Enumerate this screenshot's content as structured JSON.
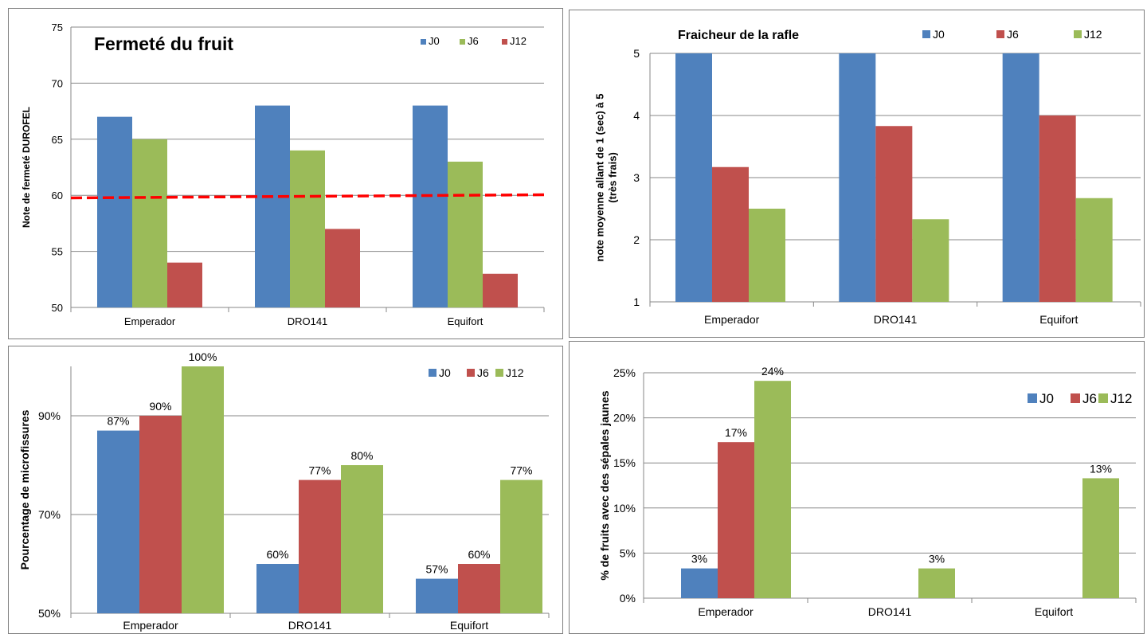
{
  "chart_data": [
    {
      "type": "bar",
      "title": "Fermeté du fruit",
      "ylabel": "Note de fermeté DUROFEL",
      "xlabel": "",
      "categories": [
        "Emperador",
        "DRO141",
        "Equifort"
      ],
      "series": [
        {
          "name": "J0",
          "color": "#4f81bd",
          "values": [
            67,
            68,
            68
          ]
        },
        {
          "name": "J6",
          "color": "#9bbb59",
          "values": [
            65,
            64,
            63
          ]
        },
        {
          "name": "J12",
          "color": "#c0504d",
          "values": [
            54,
            57,
            53
          ]
        }
      ],
      "ylim": [
        50,
        75
      ],
      "yticks": [
        50,
        55,
        60,
        65,
        70,
        75
      ],
      "ytick_labels": [
        "50",
        "55",
        "60",
        "65",
        "70",
        "75"
      ],
      "reference_line": {
        "value": 60,
        "color": "#ff0000",
        "style": "dashed"
      },
      "legend": "top-right",
      "grid": true,
      "data_labels": null
    },
    {
      "type": "bar",
      "title": "Fraicheur de la rafle",
      "ylabel": "note moyenne allant de 1 (sec) à 5 (très frais)",
      "xlabel": "",
      "categories": [
        "Emperador",
        "DRO141",
        "Equifort"
      ],
      "series": [
        {
          "name": "J0",
          "color": "#4f81bd",
          "values": [
            5,
            5,
            5
          ]
        },
        {
          "name": "J6",
          "color": "#c0504d",
          "values": [
            3.17,
            3.83,
            4.0
          ]
        },
        {
          "name": "J12",
          "color": "#9bbb59",
          "values": [
            2.5,
            2.33,
            2.67
          ]
        }
      ],
      "ylim": [
        1,
        5
      ],
      "yticks": [
        1,
        2,
        3,
        4,
        5
      ],
      "ytick_labels": [
        "1",
        "2",
        "3",
        "4",
        "5"
      ],
      "legend": "top",
      "grid": true,
      "data_labels": null
    },
    {
      "type": "bar",
      "title": "",
      "ylabel": "Pourcentage de microfissures",
      "xlabel": "",
      "categories": [
        "Emperador",
        "DRO141",
        "Equifort"
      ],
      "series": [
        {
          "name": "J0",
          "color": "#4f81bd",
          "values": [
            87,
            60,
            57
          ]
        },
        {
          "name": "J6",
          "color": "#c0504d",
          "values": [
            90,
            77,
            60
          ]
        },
        {
          "name": "J12",
          "color": "#9bbb59",
          "values": [
            100,
            80,
            77
          ]
        }
      ],
      "ylim": [
        50,
        100
      ],
      "yticks": [
        50,
        70,
        90
      ],
      "ytick_labels": [
        "50%",
        "70%",
        "90%"
      ],
      "legend": "top-right",
      "grid": true,
      "data_labels": [
        [
          "87%",
          "60%",
          "57%"
        ],
        [
          "90%",
          "77%",
          "60%"
        ],
        [
          "100%",
          "80%",
          "77%"
        ]
      ]
    },
    {
      "type": "bar",
      "title": "",
      "ylabel": "% de fruits avec des sépales jaunes",
      "xlabel": "",
      "categories": [
        "Emperador",
        "DRO141",
        "Equifort"
      ],
      "series": [
        {
          "name": "J0",
          "color": "#4f81bd",
          "values": [
            3.3,
            0,
            0
          ]
        },
        {
          "name": "J6",
          "color": "#c0504d",
          "values": [
            17.3,
            0,
            0
          ]
        },
        {
          "name": "J12",
          "color": "#9bbb59",
          "values": [
            24.1,
            3.3,
            13.3
          ]
        }
      ],
      "ylim": [
        0,
        25
      ],
      "yticks": [
        0,
        5,
        10,
        15,
        20,
        25
      ],
      "ytick_labels": [
        "0%",
        "5%",
        "10%",
        "15%",
        "20%",
        "25%"
      ],
      "legend": "right",
      "grid": true,
      "data_labels": [
        [
          "3%",
          "",
          ""
        ],
        [
          "17%",
          "",
          ""
        ],
        [
          "24%",
          "3%",
          "13%"
        ]
      ]
    }
  ]
}
